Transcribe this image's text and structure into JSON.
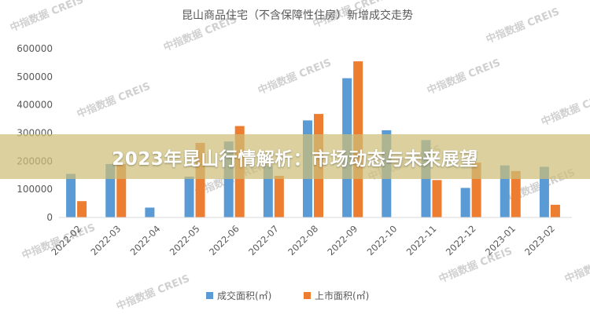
{
  "banner": {
    "text": "2023年昆山行情解析：市场动态与未来展望"
  },
  "watermark": {
    "text": "中指数据 CREIS"
  },
  "colors": {
    "series1": "#5b9bd5",
    "series2": "#ed7d31",
    "axis": "#d9d9d9",
    "text": "#595959"
  },
  "chart_data": {
    "type": "bar",
    "title": "昆山商品住宅（不含保障性住房）新增成交走势",
    "xlabel": "",
    "ylabel": "",
    "ylim": [
      0,
      600000
    ],
    "yticks": [
      "0",
      "100000",
      "200000",
      "300000",
      "400000",
      "500000",
      "600000"
    ],
    "grid": false,
    "legend_position": "bottom",
    "categories": [
      "2022-02",
      "2022-03",
      "2022-04",
      "2022-05",
      "2022-06",
      "2022-07",
      "2022-08",
      "2022-09",
      "2022-10",
      "2022-11",
      "2022-12",
      "2023-01",
      "2023-02"
    ],
    "series": [
      {
        "name": "成交面积(㎡)",
        "values": [
          155000,
          190000,
          35000,
          145000,
          270000,
          185000,
          345000,
          495000,
          310000,
          275000,
          105000,
          185000,
          180000
        ]
      },
      {
        "name": "上市面积(㎡)",
        "values": [
          58000,
          190000,
          0,
          265000,
          325000,
          148000,
          368000,
          555000,
          0,
          133000,
          195000,
          165000,
          45000
        ]
      }
    ]
  }
}
